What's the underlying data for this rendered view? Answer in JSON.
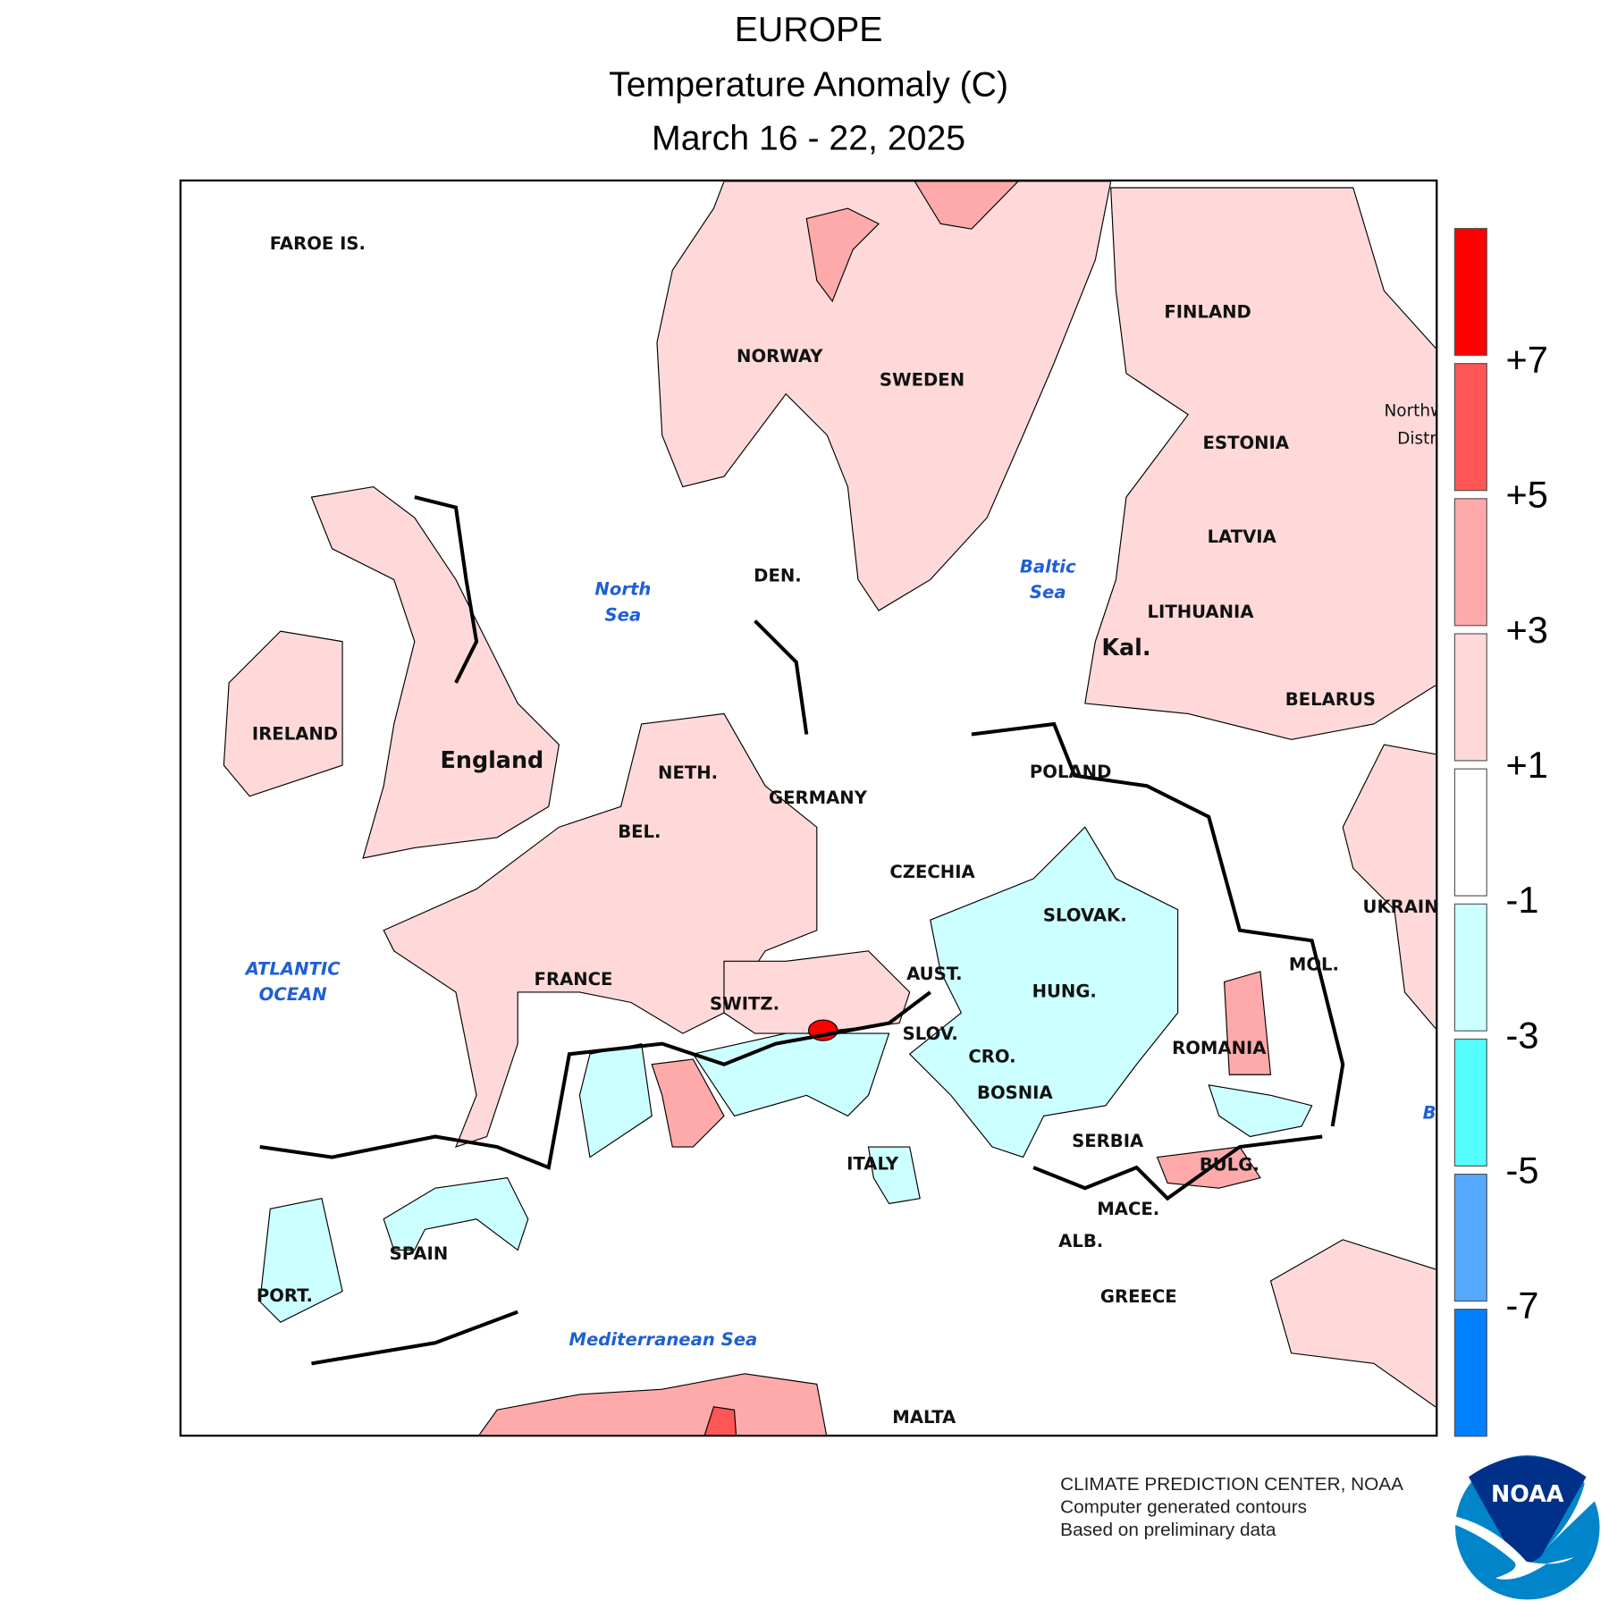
{
  "title": {
    "region": "EUROPE",
    "variable": "Temperature Anomaly (C)",
    "period": "March 16 - 22, 2025"
  },
  "map": {
    "countries": [
      "FAROE IS.",
      "NORWAY",
      "SWEDEN",
      "FINLAND",
      "ESTONIA",
      "LATVIA",
      "LITHUANIA",
      "Kal.",
      "BELARUS",
      "Northw",
      "Distri",
      "DEN.",
      "IRELAND",
      "England",
      "NETH.",
      "BEL.",
      "GERMANY",
      "POLAND",
      "CZECHIA",
      "SLOVAK.",
      "UKRAINE",
      "FRANCE",
      "SWITZ.",
      "AUST.",
      "HUNG.",
      "MOL.",
      "ROMANIA",
      "SLOV.",
      "CRO.",
      "BOSNIA",
      "SERBIA",
      "BULG.",
      "MACE.",
      "ALB.",
      "GREECE",
      "ITALY",
      "SPAIN",
      "PORT.",
      "MALTA"
    ],
    "seas": {
      "north_sea": "North\nSea",
      "baltic": "Baltic\nSea",
      "atlantic": "ATLANTIC\nOCEAN",
      "med": "Mediterranean Sea",
      "black_partial": "B"
    }
  },
  "legend": {
    "colors": [
      "#ff0000",
      "#ff5555",
      "#ffaaaa",
      "#ffd9d9",
      "#ffffff",
      "#ccffff",
      "#55ffff",
      "#55aaff",
      "#0080ff"
    ],
    "ticks": [
      "+7",
      "+5",
      "+3",
      "+1",
      "-1",
      "-3",
      "-5",
      "-7"
    ]
  },
  "credits": [
    "CLIMATE PREDICTION CENTER, NOAA",
    "Computer generated contours",
    "Based on preliminary data"
  ],
  "logo": {
    "text": "NOAA",
    "colors": {
      "top": "#003087",
      "bottom": "#0085ca"
    }
  }
}
